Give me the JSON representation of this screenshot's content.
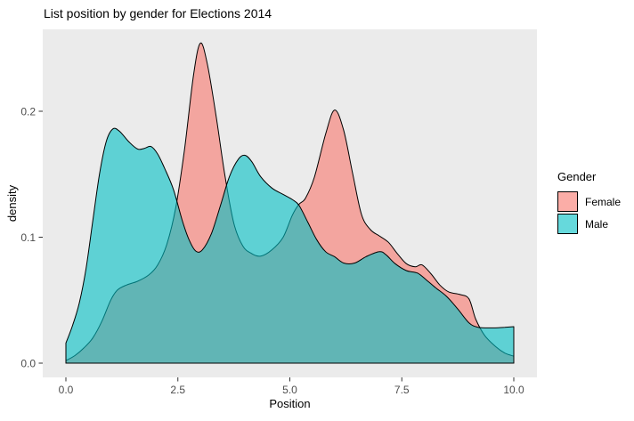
{
  "colors": {
    "page_bg": "#FFFFFF",
    "panel_bg": "#EBEBEB",
    "tick_mark": "#333333",
    "tick_label": "#4D4D4D",
    "text": "#000000"
  },
  "chart_data": {
    "type": "area",
    "subtype": "density",
    "title": "List position by gender for Elections 2014",
    "xlabel": "Position",
    "ylabel": "density",
    "grid": false,
    "xlim": [
      -0.52,
      10.52
    ],
    "ylim": [
      -0.0113,
      0.265
    ],
    "x_ticks": {
      "values": [
        0,
        2.5,
        5,
        7.5,
        10
      ],
      "labels": [
        "0.0",
        "2.5",
        "5.0",
        "7.5",
        "10.0"
      ]
    },
    "y_ticks": {
      "values": [
        0,
        0.1,
        0.2
      ],
      "labels": [
        "0.0",
        "0.1",
        "0.2"
      ]
    },
    "legend": {
      "title": "Gender",
      "position": "right",
      "items": [
        "Female",
        "Male"
      ]
    },
    "series": [
      {
        "name": "Female",
        "fill": "#F8766D",
        "fill_opacity": 0.6,
        "stroke": "#000000",
        "points": [
          [
            0,
            0.002
          ],
          [
            0.2,
            0.006
          ],
          [
            0.4,
            0.012
          ],
          [
            0.6,
            0.02
          ],
          [
            0.8,
            0.033
          ],
          [
            1.0,
            0.05
          ],
          [
            1.15,
            0.058
          ],
          [
            1.35,
            0.062
          ],
          [
            1.6,
            0.065
          ],
          [
            1.85,
            0.07
          ],
          [
            2.05,
            0.078
          ],
          [
            2.25,
            0.094
          ],
          [
            2.45,
            0.123
          ],
          [
            2.65,
            0.17
          ],
          [
            2.85,
            0.229
          ],
          [
            3.0,
            0.254
          ],
          [
            3.15,
            0.239
          ],
          [
            3.35,
            0.197
          ],
          [
            3.55,
            0.149
          ],
          [
            3.75,
            0.111
          ],
          [
            3.95,
            0.093
          ],
          [
            4.15,
            0.087
          ],
          [
            4.35,
            0.085
          ],
          [
            4.6,
            0.09
          ],
          [
            4.85,
            0.1
          ],
          [
            5.05,
            0.117
          ],
          [
            5.2,
            0.126
          ],
          [
            5.35,
            0.131
          ],
          [
            5.55,
            0.148
          ],
          [
            5.8,
            0.182
          ],
          [
            6.0,
            0.201
          ],
          [
            6.2,
            0.185
          ],
          [
            6.4,
            0.151
          ],
          [
            6.6,
            0.118
          ],
          [
            6.8,
            0.106
          ],
          [
            7.0,
            0.101
          ],
          [
            7.2,
            0.096
          ],
          [
            7.4,
            0.087
          ],
          [
            7.6,
            0.079
          ],
          [
            7.8,
            0.0765
          ],
          [
            7.95,
            0.078
          ],
          [
            8.15,
            0.071
          ],
          [
            8.35,
            0.062
          ],
          [
            8.55,
            0.0565
          ],
          [
            8.8,
            0.0545
          ],
          [
            9.0,
            0.051
          ],
          [
            9.15,
            0.035
          ],
          [
            9.35,
            0.022
          ],
          [
            9.6,
            0.013
          ],
          [
            9.8,
            0.008
          ],
          [
            10,
            0.0055
          ]
        ]
      },
      {
        "name": "Male",
        "fill": "#00BFC4",
        "fill_opacity": 0.6,
        "stroke": "#000000",
        "points": [
          [
            0,
            0.016
          ],
          [
            0.15,
            0.03
          ],
          [
            0.3,
            0.048
          ],
          [
            0.45,
            0.075
          ],
          [
            0.6,
            0.113
          ],
          [
            0.75,
            0.15
          ],
          [
            0.9,
            0.176
          ],
          [
            1.05,
            0.186
          ],
          [
            1.2,
            0.184
          ],
          [
            1.4,
            0.176
          ],
          [
            1.6,
            0.17
          ],
          [
            1.75,
            0.1705
          ],
          [
            1.9,
            0.172
          ],
          [
            2.05,
            0.166
          ],
          [
            2.2,
            0.155
          ],
          [
            2.4,
            0.138
          ],
          [
            2.6,
            0.113
          ],
          [
            2.75,
            0.098
          ],
          [
            2.9,
            0.089
          ],
          [
            3.05,
            0.09
          ],
          [
            3.25,
            0.103
          ],
          [
            3.45,
            0.125
          ],
          [
            3.65,
            0.148
          ],
          [
            3.85,
            0.162
          ],
          [
            4.0,
            0.165
          ],
          [
            4.15,
            0.16
          ],
          [
            4.35,
            0.148
          ],
          [
            4.6,
            0.139
          ],
          [
            4.85,
            0.134
          ],
          [
            5.05,
            0.13
          ],
          [
            5.2,
            0.1255
          ],
          [
            5.4,
            0.112
          ],
          [
            5.6,
            0.098
          ],
          [
            5.8,
            0.0885
          ],
          [
            6.0,
            0.0845
          ],
          [
            6.2,
            0.0795
          ],
          [
            6.45,
            0.0795
          ],
          [
            6.7,
            0.0845
          ],
          [
            7.0,
            0.0885
          ],
          [
            7.15,
            0.086
          ],
          [
            7.35,
            0.079
          ],
          [
            7.6,
            0.0735
          ],
          [
            7.85,
            0.0715
          ],
          [
            8.05,
            0.066
          ],
          [
            8.25,
            0.06
          ],
          [
            8.5,
            0.053
          ],
          [
            8.75,
            0.043
          ],
          [
            9.0,
            0.032
          ],
          [
            9.2,
            0.0285
          ],
          [
            9.5,
            0.028
          ],
          [
            9.8,
            0.0285
          ],
          [
            10,
            0.029
          ]
        ]
      }
    ]
  }
}
